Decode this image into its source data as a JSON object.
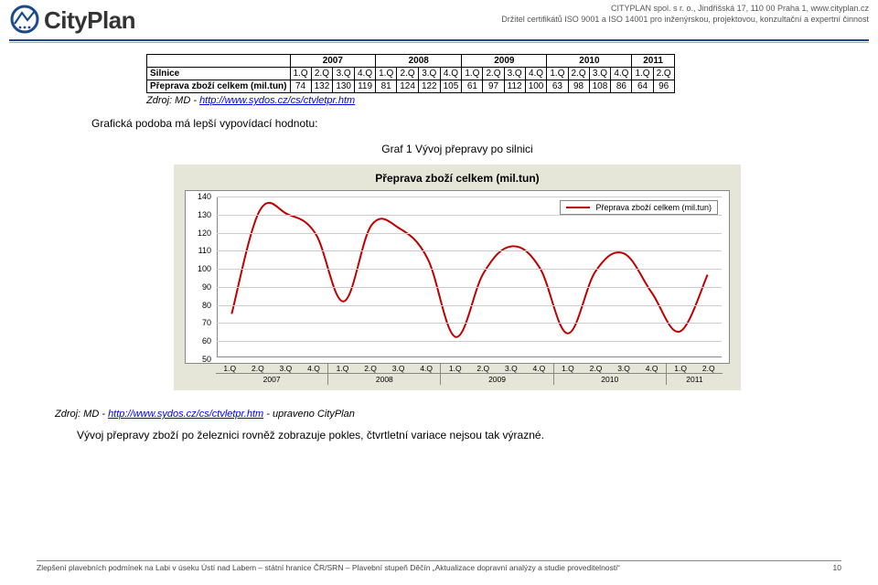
{
  "header": {
    "logo_text": "CityPlan",
    "address": "CITYPLAN spol. s r. o., Jindřišská 17, 110 00 Praha 1, www.cityplan.cz",
    "cert": "Držitel certifikátů ISO 9001 a ISO 14001 pro inženýrskou, projektovou, konzultační a expertní činnost"
  },
  "table": {
    "years": [
      "2007",
      "2008",
      "2009",
      "2010",
      "2011"
    ],
    "year_spans": [
      4,
      4,
      4,
      4,
      2
    ],
    "quarters": [
      "1.Q",
      "2.Q",
      "3.Q",
      "4.Q",
      "1.Q",
      "2.Q",
      "3.Q",
      "4.Q",
      "1.Q",
      "2.Q",
      "3.Q",
      "4.Q",
      "1.Q",
      "2.Q",
      "3.Q",
      "4.Q",
      "1.Q",
      "2.Q"
    ],
    "row1_label": "Silnice",
    "row2_label": "Přeprava zboží celkem (mil.tun)",
    "row2_values": [
      74,
      132,
      130,
      119,
      81,
      124,
      122,
      105,
      61,
      97,
      112,
      100,
      63,
      98,
      108,
      86,
      64,
      96
    ]
  },
  "source1_label": "Zdroj: MD - ",
  "source1_url_text": "http://www.sydos.cz/cs/ctvletpr.htm",
  "para1": "Grafická podoba má lepší vypovídací hodnotu:",
  "figure_caption": "Graf 1 Vývoj přepravy po silnici",
  "chart": {
    "title": "Přeprava zboží celkem (mil.tun)",
    "legend": "Přeprava zboží celkem (mil.tun)",
    "y_min": 50,
    "y_max": 140,
    "y_ticks": [
      50,
      60,
      70,
      80,
      90,
      100,
      110,
      120,
      130,
      140
    ],
    "line_color": "#c00000",
    "grid_color": "#cccccc",
    "bg_panel": "#e6e6d8",
    "x_labels": [
      "1.Q",
      "2.Q",
      "3.Q",
      "4.Q",
      "1.Q",
      "2.Q",
      "3.Q",
      "4.Q",
      "1.Q",
      "2.Q",
      "3.Q",
      "4.Q",
      "1.Q",
      "2.Q",
      "3.Q",
      "4.Q",
      "1.Q",
      "2.Q"
    ],
    "x_years": [
      "2007",
      "2008",
      "2009",
      "2010",
      "2011"
    ],
    "series": [
      74,
      132,
      130,
      119,
      81,
      124,
      122,
      105,
      61,
      97,
      112,
      100,
      63,
      98,
      108,
      86,
      64,
      96
    ]
  },
  "source2_prefix": "Zdroj: MD - ",
  "source2_url_text": "http://www.sydos.cz/cs/ctvletpr.htm",
  "source2_suffix": " - upraveno CityPlan",
  "para2": "Vývoj přepravy zboží po železnici rovněž zobrazuje pokles, čtvrtletní variace nejsou tak výrazné.",
  "footer_text": "Zlepšení plavebních podmínek na Labi v úseku Ústí nad Labem – státní hranice ČR/SRN – Plavební stupeň Děčín „Aktualizace dopravní analýzy a studie proveditelnosti“",
  "page_number": "10"
}
